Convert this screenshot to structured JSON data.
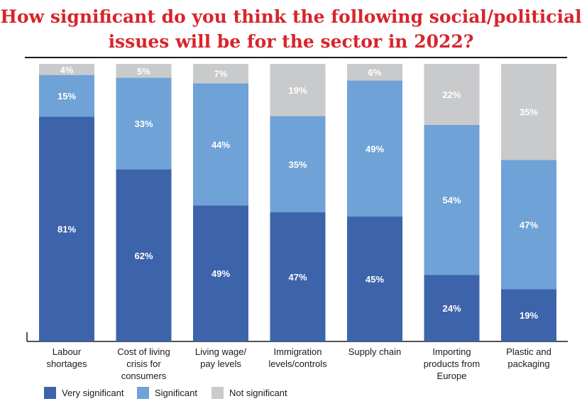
{
  "title_lines": [
    "How significant do you think the following social/politicial",
    "issues will be for the sector in 2022?"
  ],
  "colors": {
    "very": "#3d63ab",
    "significant": "#6fa2d6",
    "not": "#c9cacc",
    "title": "#d8242b"
  },
  "legend": [
    {
      "label": "Very significant",
      "color": "#3d63ab"
    },
    {
      "label": "Significant",
      "color": "#6fa2d6"
    },
    {
      "label": "Not significant",
      "color": "#c9cacc"
    }
  ],
  "chart_data": {
    "type": "bar",
    "stacked": true,
    "percent": true,
    "categories": [
      [
        "Labour",
        "shortages"
      ],
      [
        "Cost of living",
        "crisis for",
        "consumers"
      ],
      [
        "Living wage/",
        "pay levels"
      ],
      [
        "Immigration",
        "levels/controls"
      ],
      [
        "Supply chain"
      ],
      [
        "Importing",
        "products from",
        "Europe"
      ],
      [
        "Plastic and",
        "packaging"
      ]
    ],
    "series": [
      {
        "name": "Very significant",
        "values": [
          81,
          62,
          49,
          47,
          45,
          24,
          19
        ]
      },
      {
        "name": "Significant",
        "values": [
          15,
          33,
          44,
          35,
          49,
          54,
          47
        ]
      },
      {
        "name": "Not significant",
        "values": [
          4,
          5,
          7,
          19,
          6,
          22,
          35
        ]
      }
    ],
    "ylim": [
      0,
      100
    ]
  }
}
